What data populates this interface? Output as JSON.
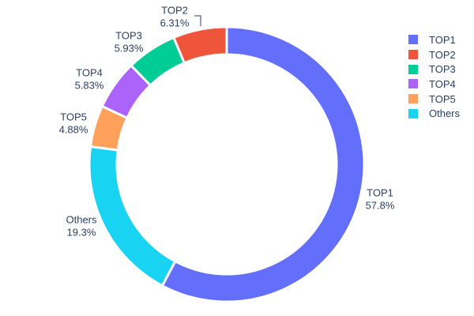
{
  "chart_data": {
    "type": "pie",
    "subtype": "donut",
    "hole": 0.8,
    "title": "",
    "background": "#ffffff",
    "text_color": "#2a3f5f",
    "separator_color": "#ffffff",
    "slices": [
      {
        "name": "TOP1",
        "value": 57.8,
        "percent_text": "57.8%",
        "color": "#636EFA"
      },
      {
        "name": "TOP2",
        "value": 6.31,
        "percent_text": "6.31%",
        "color": "#EF553B"
      },
      {
        "name": "TOP3",
        "value": 5.93,
        "percent_text": "5.93%",
        "color": "#00CC96"
      },
      {
        "name": "TOP4",
        "value": 5.83,
        "percent_text": "5.83%",
        "color": "#AB63FA"
      },
      {
        "name": "TOP5",
        "value": 4.88,
        "percent_text": "4.88%",
        "color": "#FFA15A"
      },
      {
        "name": "Others",
        "value": 19.3,
        "percent_text": "19.3%",
        "color": "#19D3F3"
      }
    ],
    "clockwise_order_from_top": [
      "TOP1",
      "Others",
      "TOP5",
      "TOP4",
      "TOP3",
      "TOP2"
    ],
    "legend": {
      "position": "right",
      "entries": [
        "TOP1",
        "TOP2",
        "TOP3",
        "TOP4",
        "TOP5",
        "Others"
      ]
    }
  }
}
